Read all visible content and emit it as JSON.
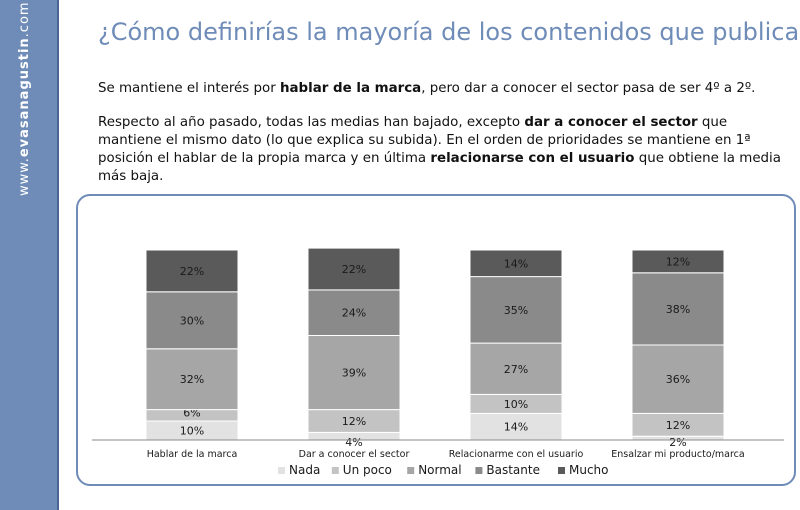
{
  "sidebar": {
    "site_prefix": "www.",
    "site_name": "evasanagustin",
    "site_suffix": ".com"
  },
  "title": "¿Cómo definirías la mayoría de los contenidos que publicas?",
  "paragraph1": {
    "t1": "Se mantiene el interés por ",
    "b1": "hablar de la marca",
    "t2": ", pero dar a conocer el sector pasa de ser 4º a 2º."
  },
  "paragraph2": {
    "t1": "Respecto al año pasado, todas las medias han bajado, excepto ",
    "b1": "dar a conocer el sector",
    "t2": " que mantiene el mismo dato (lo que explica su subida). En el orden de prioridades se mantiene en 1ª posición el hablar de la propia marca y en última ",
    "b2": "relacionarse con el usuario",
    "t3": " que obtiene la media más baja."
  },
  "colors": {
    "Nada": "#e2e2e2",
    "Un poco": "#c3c3c3",
    "Normal": "#a6a6a6",
    "Bastante": "#8a8a8a",
    "Mucho": "#5a5a5a"
  },
  "chart_data": {
    "type": "bar",
    "stacked": true,
    "percent": true,
    "categories": [
      "Hablar de la marca",
      "Dar a conocer el sector",
      "Relacionarme con el usuario",
      "Ensalzar mi producto/marca"
    ],
    "series": [
      {
        "name": "Nada",
        "values": [
          10,
          4,
          14,
          2
        ]
      },
      {
        "name": "Un poco",
        "values": [
          6,
          12,
          10,
          12
        ]
      },
      {
        "name": "Normal",
        "values": [
          32,
          39,
          27,
          36
        ]
      },
      {
        "name": "Bastante",
        "values": [
          30,
          24,
          35,
          38
        ]
      },
      {
        "name": "Mucho",
        "values": [
          22,
          22,
          14,
          12
        ]
      }
    ],
    "data_labels": [
      [
        "10%",
        "4%",
        "14%",
        "2%"
      ],
      [
        "6%",
        "12%",
        "10%",
        "12%"
      ],
      [
        "32%",
        "39%",
        "27%",
        "36%"
      ],
      [
        "30%",
        "24%",
        "35%",
        "38%"
      ],
      [
        "22%",
        "22%",
        "14%",
        "12%"
      ]
    ],
    "legend_position": "bottom",
    "grid": false
  }
}
